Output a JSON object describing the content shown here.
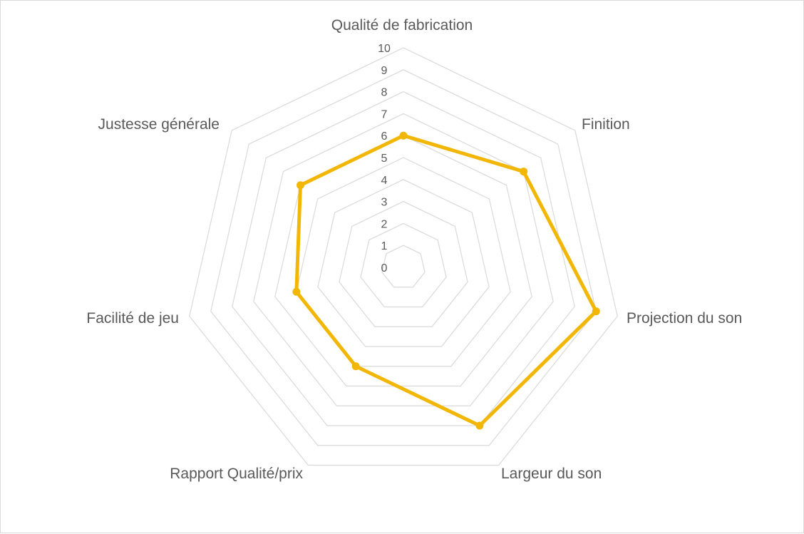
{
  "chart_data": {
    "type": "radar",
    "categories": [
      "Qualité de fabrication",
      "Finition",
      "Projection du son",
      "Largeur du son",
      "Rapport Qualité/prix",
      "Facilité de jeu",
      "Justesse générale"
    ],
    "series": [
      {
        "values": [
          6,
          7,
          9,
          8,
          5,
          5,
          6
        ]
      }
    ],
    "rlim": [
      0,
      10
    ],
    "ticks": [
      "0",
      "1",
      "2",
      "3",
      "4",
      "5",
      "6",
      "7",
      "8",
      "9",
      "10"
    ],
    "grid": true,
    "legend": "none",
    "colors": {
      "series": "#f2b705",
      "grid": "#d9d9d9",
      "text": "#595959"
    }
  }
}
